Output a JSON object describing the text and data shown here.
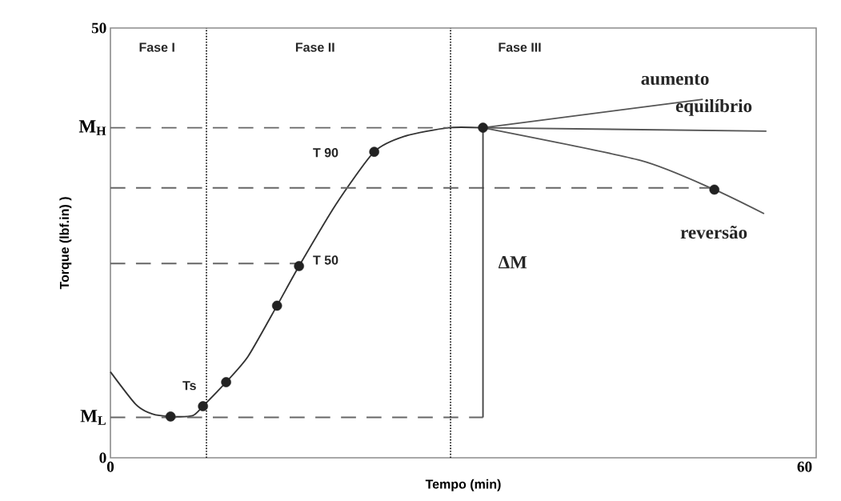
{
  "chart_data": {
    "type": "line",
    "xlabel": "Tempo (min)",
    "ylabel": "Torque (lbf.in) )",
    "xlim": [
      0,
      61
    ],
    "ylim": [
      0,
      50
    ],
    "xticks": [
      0,
      60
    ],
    "yticks": [
      0,
      {
        "value": 4.7,
        "label": "M$_{L}$"
      },
      {
        "value": 38.4,
        "label": "M$_{H}$"
      },
      50
    ],
    "grid": false,
    "series": [
      {
        "color": "#333333",
        "line_style": "solid",
        "x": [
          0,
          2.2,
          3.6,
          5.2,
          7.1,
          8.0,
          10.0,
          11.9,
          14.4,
          16.3,
          19.5,
          22.8,
          25.4,
          29.2,
          32.2
        ],
        "values": [
          10.0,
          6.2,
          5.1,
          4.8,
          4.9,
          6.0,
          8.8,
          11.8,
          17.7,
          22.3,
          29.5,
          35.6,
          37.4,
          38.4,
          38.4
        ]
      },
      {
        "color": "#555555",
        "line_style": "solid",
        "x": [
          32.2,
          51.2
        ],
        "values": [
          38.4,
          41.7
        ]
      },
      {
        "color": "#555555",
        "line_style": "solid",
        "x": [
          32.2,
          56.7
        ],
        "values": [
          38.4,
          38.0
        ]
      },
      {
        "color": "#555555",
        "line_style": "solid",
        "x": [
          32.2,
          45.8,
          52.2,
          56.5
        ],
        "values": [
          38.4,
          34.6,
          31.2,
          28.4
        ]
      },
      {
        "color": "#666666",
        "line_style": "dashed",
        "x": [
          0,
          29.2
        ],
        "values": [
          38.4,
          38.4
        ]
      },
      {
        "color": "#666666",
        "line_style": "dashed",
        "x": [
          0,
          52.2
        ],
        "values": [
          31.4,
          31.4
        ]
      },
      {
        "color": "#666666",
        "line_style": "dashed",
        "x": [
          0,
          16.3
        ],
        "values": [
          22.6,
          22.6
        ]
      },
      {
        "color": "#666666",
        "line_style": "dashed",
        "x": [
          0,
          32.2
        ],
        "values": [
          4.7,
          4.7
        ]
      },
      {
        "color": "#444444",
        "line_style": "solid",
        "x": [
          32.2,
          32.2
        ],
        "values": [
          38.4,
          4.7
        ]
      },
      {
        "type": "scatter",
        "color": "#222222",
        "marker": "circle",
        "x": [
          5.2,
          8.0,
          10.0,
          14.4,
          16.3,
          22.8,
          32.2,
          52.2
        ],
        "values": [
          4.8,
          6.0,
          8.8,
          17.7,
          22.3,
          35.6,
          38.4,
          31.2
        ]
      }
    ],
    "ref_lines": [
      {
        "axis": "x",
        "value": 8.3,
        "color": "#222222",
        "line_style": "dotted"
      },
      {
        "axis": "x",
        "value": 29.4,
        "color": "#222222",
        "line_style": "dotted"
      }
    ],
    "annotations": [
      "Fase I",
      "Fase II",
      "Fase III",
      "T 90",
      "T 50",
      "Ts",
      "aumento",
      "equilíbrio",
      "reversão",
      "ΔM"
    ]
  }
}
